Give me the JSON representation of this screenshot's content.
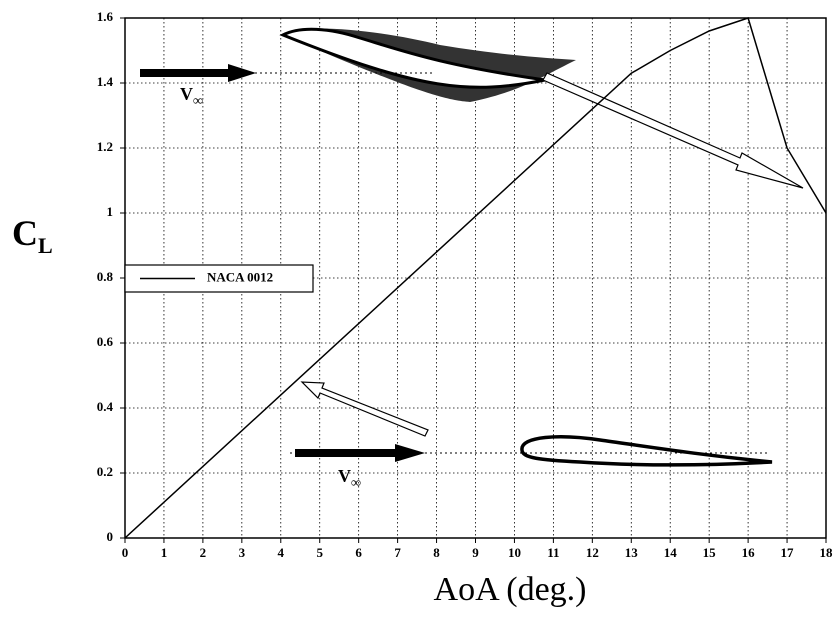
{
  "chart_data": {
    "type": "line",
    "xlabel": "AoA (deg.)",
    "ylabel": "C",
    "ylabel_subscript": "L",
    "series": [
      {
        "name": "NACA 0012",
        "color": "#000000",
        "x": [
          0,
          13,
          14,
          15,
          16,
          17,
          18
        ],
        "values": [
          0,
          1.43,
          1.5,
          1.56,
          1.6,
          1.2,
          1.0
        ]
      }
    ],
    "xlim": [
      0,
      18
    ],
    "ylim": [
      0,
      1.6
    ],
    "xticks": [
      0,
      1,
      2,
      3,
      4,
      5,
      6,
      7,
      8,
      9,
      10,
      11,
      12,
      13,
      14,
      15,
      16,
      17,
      18
    ],
    "yticks": [
      0,
      0.2,
      0.4,
      0.6,
      0.8,
      1,
      1.2,
      1.4,
      1.6
    ],
    "grid": true,
    "legend": "center left",
    "annotations": [
      {
        "text": "V",
        "subscript": "∞"
      },
      {
        "text": "V",
        "subscript": "∞"
      }
    ]
  }
}
